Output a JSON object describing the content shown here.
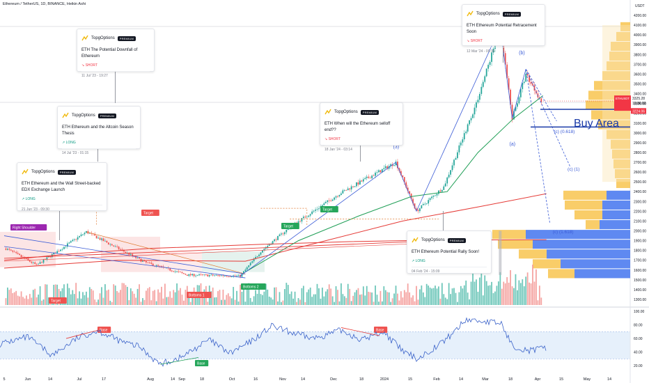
{
  "header": {
    "symbol_title": "Ethereum / TetherUS, 1D, BINANCE, Heikin Ashi"
  },
  "price_axis": {
    "currency": "USDT",
    "ticks": [
      "4200.00",
      "4100.00",
      "4000.00",
      "3900.00",
      "3800.00",
      "3700.00",
      "3600.00",
      "3500.00",
      "3400.00",
      "3300.00",
      "3200.00",
      "3100.00",
      "3000.00",
      "2900.00",
      "2800.00",
      "2700.00",
      "2600.00",
      "2500.00",
      "2400.00",
      "2300.00",
      "2200.00",
      "2100.00",
      "2000.00",
      "1900.00",
      "1800.00",
      "1700.00",
      "1600.00",
      "1500.00",
      "1400.00",
      "1300.00"
    ],
    "price_tag": {
      "symbol": "ETHUSDT",
      "price": "3325.28",
      "countdown": "10:36:03"
    },
    "low_tag": "3224.06"
  },
  "rsi_axis": {
    "ticks": [
      "100.00",
      "80.00",
      "60.00",
      "40.00",
      "20.00"
    ]
  },
  "time_axis": {
    "labels": [
      "5",
      "Jun",
      "14",
      "Jul",
      "17",
      "Aug",
      "14",
      "Sep",
      "18",
      "Oct",
      "16",
      "Nov",
      "14",
      "Dec",
      "18",
      "2024",
      "15",
      "Feb",
      "14",
      "Mar",
      "18",
      "Apr",
      "15",
      "May",
      "14"
    ]
  },
  "ideas": [
    {
      "brand": "TopgOptions",
      "badge": "PREMIUM",
      "title": "ETH The Potential Downfall of Ethereum",
      "direction": "SHORT",
      "date": "11 Jul '23 - 19:27"
    },
    {
      "brand": "TopgOptions",
      "badge": "PREMIUM",
      "title": "ETH Ethereum and the Altcoin Season Thesis",
      "direction": "LONG",
      "date": "14 Jul '23 - 01:15"
    },
    {
      "brand": "TopgOptions",
      "badge": "PREMIUM",
      "title": "ETH Ethereum and the Wall Street-backed EDX Exchange Launch",
      "direction": "LONG",
      "date": "21 Jun '23 - 09:30"
    },
    {
      "brand": "TopgOptions",
      "badge": "PREMIUM",
      "title": "ETH When will the Ethereum selloff end??",
      "direction": "SHORT",
      "date": "18 Jan '24 - 03:14"
    },
    {
      "brand": "TopgOptions",
      "badge": "PREMIUM",
      "title": "ETH Ethereum Potential Retracement Soon",
      "direction": "SHORT",
      "date": "12 Mar '24 - 09:35"
    },
    {
      "brand": "TopgOptions",
      "badge": "PREMIUM",
      "title": "ETH Ethereum Potential Rally Soon!",
      "direction": "LONG",
      "date": "04 Feb '24 - 15:09"
    }
  ],
  "labels": {
    "right_shoulder": "Right Shoulder",
    "target": "Target",
    "bottoms_1": "Bottoms 1",
    "bottoms_2": "Bottoms 2",
    "base": "Base",
    "wave_3": "(3)",
    "wave_a": "(a)",
    "wave_b": "(b)",
    "wave_c_0618": "(c) (0.618)",
    "wave_c_1": "(c) (1)",
    "wave_c_1618": "(c) (1.618)",
    "buy_area": "Buy Area"
  },
  "colors": {
    "up": "#26a69a",
    "down": "#ef5350",
    "up_vol": "#5fc1b2",
    "down_vol": "#f49a98",
    "trend": "#3a5bd6",
    "ema_green": "#1e9e55",
    "ema_red": "#e53935",
    "vp_blue": "#4e7cf0",
    "vp_yellow": "#f7c144",
    "buy_area": "#1a3aa8",
    "rsi_line": "#3a62c9",
    "rsi_band": "#e6f0fb",
    "label_green": "#26a65b",
    "label_red": "#ef5350",
    "label_purple": "#9c27b0"
  },
  "chart_data": {
    "type": "candlestick",
    "title": "Ethereum / TetherUS, 1D, BINANCE, Heikin Ashi",
    "ylim": [
      1250,
      4250
    ],
    "key_prices": [
      {
        "date": "2023-05-28",
        "close": 1820
      },
      {
        "date": "2023-06-15",
        "close": 1650
      },
      {
        "date": "2023-07-14",
        "close": 1990
      },
      {
        "date": "2023-08-17",
        "close": 1680
      },
      {
        "date": "2023-09-11",
        "close": 1550
      },
      {
        "date": "2023-10-12",
        "close": 1540
      },
      {
        "date": "2023-10-24",
        "close": 1790
      },
      {
        "date": "2023-11-11",
        "close": 2050
      },
      {
        "date": "2023-12-09",
        "close": 2380
      },
      {
        "date": "2024-01-11",
        "close": 2700
      },
      {
        "date": "2024-01-23",
        "close": 2200
      },
      {
        "date": "2024-02-08",
        "close": 2450
      },
      {
        "date": "2024-02-27",
        "close": 3300
      },
      {
        "date": "2024-03-12",
        "close": 4080
      },
      {
        "date": "2024-03-19",
        "close": 3150
      },
      {
        "date": "2024-03-27",
        "close": 3600
      },
      {
        "date": "2024-04-05",
        "close": 3325
      }
    ],
    "buy_area": {
      "low": 3060,
      "high": 3240
    },
    "rsi_ylim": [
      15,
      100
    ],
    "rsi_band": [
      30,
      70
    ]
  }
}
